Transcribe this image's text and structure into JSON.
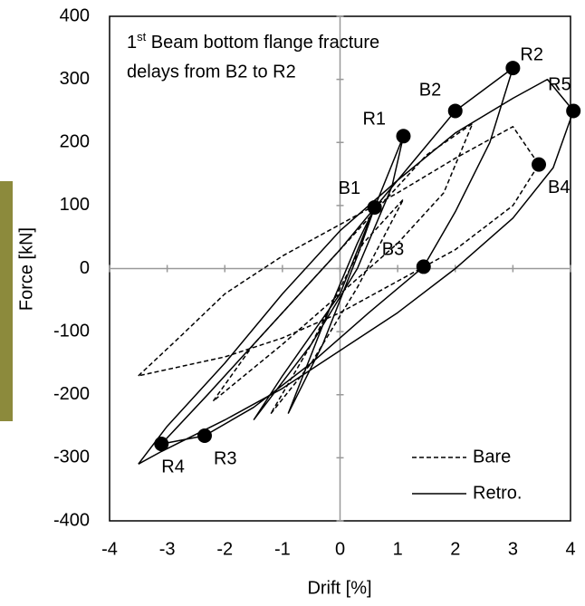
{
  "chart_data": {
    "type": "line",
    "x_label": "Drift [%]",
    "y_label": "Force [kN]",
    "annotation": {
      "base": "1",
      "sup": "st",
      "rest": " Beam bottom flange fracture",
      "line2": "delays from B2 to R2"
    },
    "xlim": [
      -4,
      4
    ],
    "xticks": [
      -4,
      -3,
      -2,
      -1,
      0,
      1,
      2,
      3,
      4
    ],
    "ylim": [
      -400,
      400
    ],
    "yticks": [
      -400,
      -300,
      -200,
      -100,
      0,
      100,
      200,
      300,
      400
    ],
    "series": [
      {
        "name": "Bare",
        "color": "#000000",
        "dash": true,
        "x": [
          -3.5,
          -2.8,
          -2,
          -1,
          0,
          1,
          2,
          3,
          3.45,
          3,
          2,
          1,
          0,
          -1,
          -2,
          -3,
          -3.5,
          null,
          -2.2,
          -1.5,
          -0.5,
          0.5,
          1.5,
          2.3,
          1.8,
          1,
          0,
          -1,
          -2.2,
          null,
          -1.2,
          -0.5,
          0.3,
          1.1,
          0.4,
          -0.5,
          -1.2
        ],
        "y": [
          -170,
          -110,
          -40,
          20,
          70,
          120,
          175,
          225,
          165,
          100,
          30,
          -20,
          -70,
          -110,
          -140,
          -160,
          -170,
          null,
          -210,
          -120,
          -20,
          80,
          180,
          230,
          120,
          40,
          -40,
          -120,
          -210,
          null,
          -230,
          -150,
          -30,
          110,
          40,
          -120,
          -230
        ]
      },
      {
        "name": "Retro.",
        "color": "#000000",
        "dash": false,
        "x": [
          -3.5,
          -3,
          -2,
          -1,
          0,
          1,
          2,
          3,
          3.6,
          4.05,
          3.7,
          3,
          2,
          1,
          0,
          -1,
          -2,
          -3.1,
          -3.5,
          null,
          -3.1,
          -2.3,
          -1.3,
          0,
          1,
          2,
          3,
          2.6,
          2,
          1.45,
          0.5,
          -0.5,
          -1.5,
          -2.35,
          -3.1,
          null,
          -1.5,
          -1,
          0,
          0.6,
          1.1,
          0.9,
          0.3,
          -0.5,
          -1.5,
          null,
          -0.9,
          -0.3,
          0.3,
          0.6,
          0.3,
          -0.3,
          -0.9
        ],
        "y": [
          -310,
          -250,
          -150,
          -40,
          60,
          140,
          215,
          270,
          300,
          250,
          160,
          80,
          0,
          -70,
          -130,
          -190,
          -240,
          -290,
          -310,
          null,
          -278,
          -200,
          -100,
          30,
          140,
          250,
          318,
          200,
          90,
          3,
          -70,
          -150,
          -220,
          -265,
          -278,
          null,
          -240,
          -170,
          -40,
          97,
          210,
          130,
          0,
          -120,
          -240,
          null,
          -230,
          -120,
          20,
          97,
          40,
          -90,
          -230
        ]
      }
    ],
    "points": {
      "labels": [
        "B1",
        "R1",
        "B2",
        "R2",
        "R5",
        "B4",
        "B3",
        "R3",
        "R4"
      ],
      "x": [
        0.6,
        1.1,
        2,
        3,
        4.05,
        3.45,
        1.45,
        -2.35,
        -3.1
      ],
      "y": [
        97,
        210,
        250,
        318,
        250,
        165,
        3,
        -265,
        -278
      ]
    },
    "legend": "bottom-right",
    "zero_lines": true
  }
}
